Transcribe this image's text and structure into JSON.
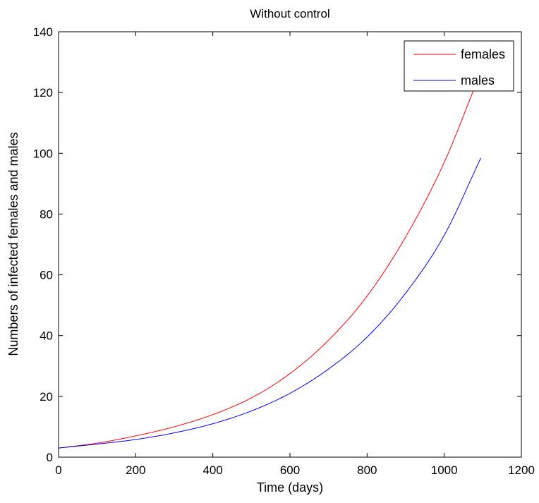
{
  "chart_data": {
    "type": "line",
    "title": "Without control",
    "xlabel": "Time (days)",
    "ylabel": "Numbers of infected females and males",
    "xlim": [
      0,
      1200
    ],
    "ylim": [
      0,
      140
    ],
    "xticks": [
      0,
      200,
      400,
      600,
      800,
      1000,
      1200
    ],
    "yticks": [
      0,
      20,
      40,
      60,
      80,
      100,
      120,
      140
    ],
    "xtick_labels": [
      "0",
      "200",
      "400",
      "600",
      "800",
      "1000",
      "1200"
    ],
    "ytick_labels": [
      "0",
      "20",
      "40",
      "60",
      "80",
      "100",
      "120",
      "140"
    ],
    "grid": false,
    "legend_position": "top-right",
    "series": [
      {
        "name": "females",
        "color": "#ff0000",
        "x": [
          0,
          100,
          200,
          300,
          400,
          500,
          600,
          700,
          800,
          900,
          1000,
          1080
        ],
        "y": [
          3,
          4.6,
          7,
          10,
          14,
          19.5,
          27.5,
          38.5,
          53,
          72.5,
          97,
          122
        ]
      },
      {
        "name": "males",
        "color": "#0000ff",
        "x": [
          0,
          100,
          200,
          300,
          400,
          500,
          600,
          700,
          800,
          900,
          1000,
          1095
        ],
        "y": [
          3,
          4.3,
          5.8,
          8,
          11,
          15.2,
          21,
          29,
          39.5,
          54,
          73,
          98.5
        ]
      }
    ]
  }
}
